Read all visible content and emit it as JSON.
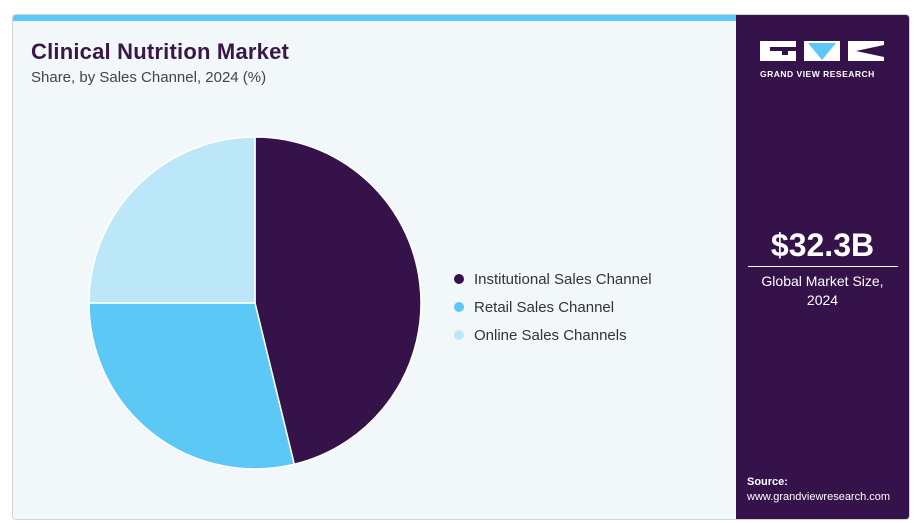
{
  "header": {
    "title": "Clinical Nutrition Market",
    "subtitle": "Share, by Sales Channel, 2024 (%)"
  },
  "colors": {
    "topbar": "#5bc8f5",
    "panel": "#36124a",
    "title": "#3a1846"
  },
  "chart_data": {
    "type": "pie",
    "title": "Clinical Nutrition Market",
    "subtitle": "Share, by Sales Channel, 2024 (%)",
    "legend_position": "right",
    "slices": [
      {
        "label": "Institutional Sales Channel",
        "value": 46.2,
        "color": "#36124a"
      },
      {
        "label": "Retail Sales Channel",
        "value": 28.8,
        "color": "#5bc8f5"
      },
      {
        "label": "Online Sales Channels",
        "value": 25.0,
        "color": "#bce7f8"
      }
    ]
  },
  "sidebar": {
    "logo_text": "GRAND VIEW RESEARCH",
    "market_size": "$32.3B",
    "market_size_label_line1": "Global Market Size,",
    "market_size_label_line2": "2024",
    "source_label": "Source:",
    "source_url": "www.grandviewresearch.com"
  }
}
